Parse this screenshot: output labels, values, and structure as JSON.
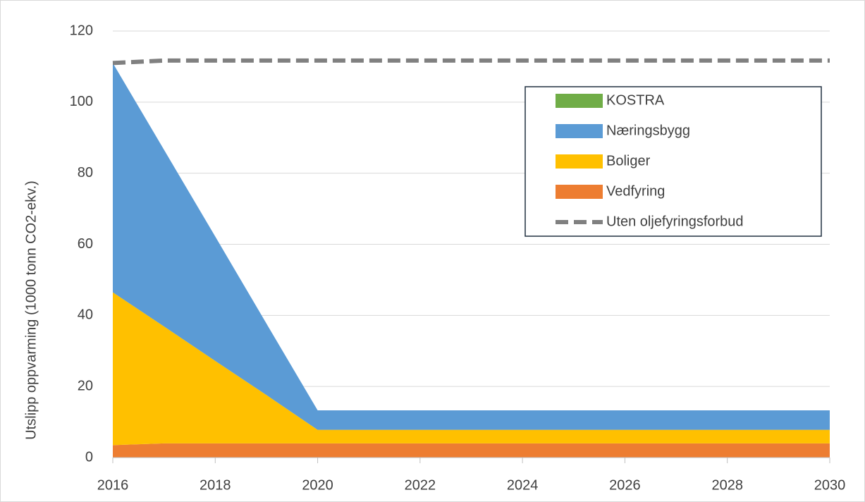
{
  "chart_data": {
    "type": "area",
    "stacked": true,
    "y_label": "Utslipp oppvarming (1000 tonn CO2-ekv.)",
    "x": [
      2016,
      2017,
      2018,
      2019,
      2020,
      2021,
      2022,
      2023,
      2024,
      2025,
      2026,
      2027,
      2028,
      2029,
      2030
    ],
    "series": [
      {
        "name": "KOSTRA",
        "color": "#70ad47",
        "values": [
          0,
          0,
          0,
          0,
          0,
          0,
          0,
          0,
          0,
          0,
          0,
          0,
          0,
          0,
          0
        ]
      },
      {
        "name": "Næringsbygg",
        "color": "#5b9bd5",
        "values": [
          64.5,
          49.7,
          35,
          20.1,
          5.5,
          5.5,
          5.5,
          5.5,
          5.5,
          5.5,
          5.5,
          5.5,
          5.5,
          5.5,
          5.5
        ]
      },
      {
        "name": "Boliger",
        "color": "#ffc000",
        "values": [
          43,
          32.9,
          23.2,
          13.6,
          3.8,
          3.8,
          3.8,
          3.8,
          3.8,
          3.8,
          3.8,
          3.8,
          3.8,
          3.8,
          3.8
        ]
      },
      {
        "name": "Vedfyring",
        "color": "#ed7d31",
        "values": [
          3.5,
          4,
          4,
          4,
          4,
          4,
          4,
          4,
          4,
          4,
          4,
          4,
          4,
          4,
          4
        ]
      },
      {
        "name": "Uten oljefyringsforbud",
        "color": "#808080",
        "type": "line",
        "dashed": true,
        "values": [
          111,
          111.7,
          111.7,
          111.7,
          111.7,
          111.7,
          111.7,
          111.7,
          111.7,
          111.7,
          111.7,
          111.7,
          111.7,
          111.7,
          111.7
        ]
      }
    ],
    "xlim": [
      2016,
      2030
    ],
    "xticks": [
      2016,
      2018,
      2020,
      2022,
      2024,
      2026,
      2028,
      2030
    ],
    "ylim": [
      0,
      120
    ],
    "yticks": [
      0,
      20,
      40,
      60,
      80,
      100,
      120
    ],
    "grid": true,
    "legend": "upper right"
  }
}
